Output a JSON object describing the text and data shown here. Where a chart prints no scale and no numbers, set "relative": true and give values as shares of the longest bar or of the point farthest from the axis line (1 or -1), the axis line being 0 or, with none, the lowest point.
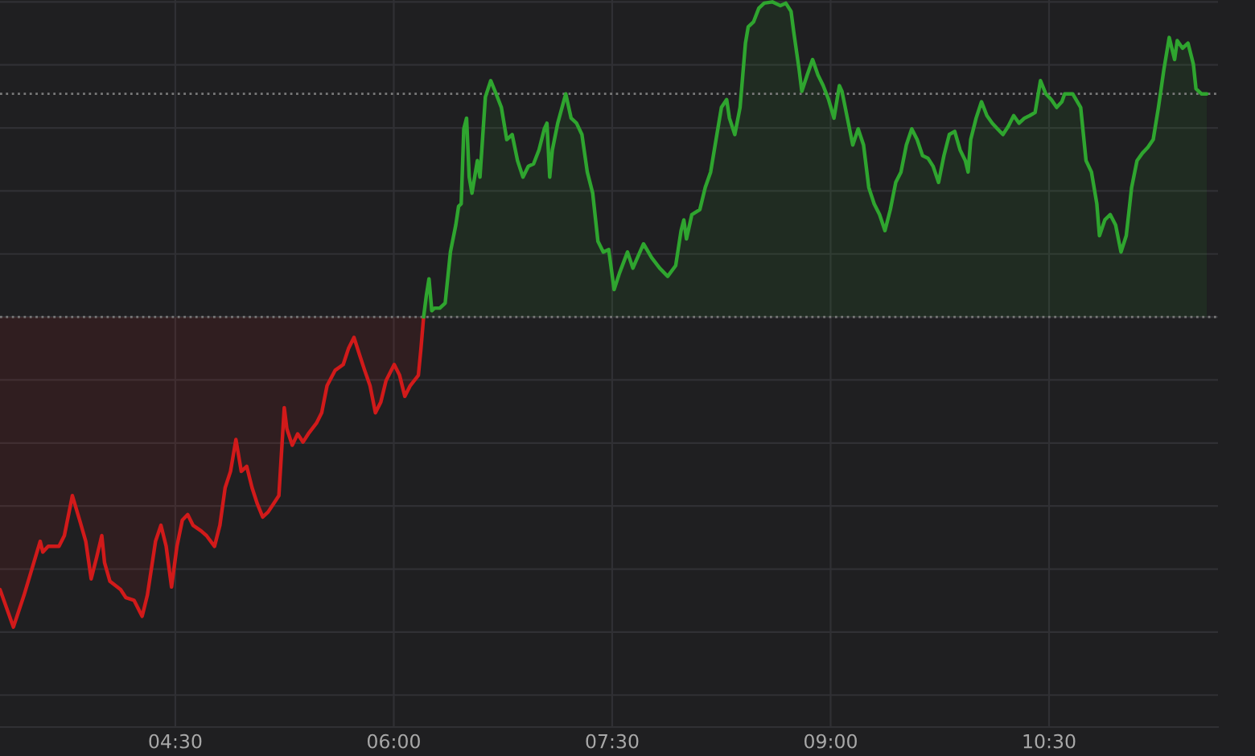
{
  "chart_data": {
    "type": "area",
    "relative": true,
    "grid": true,
    "tick_labels": "x",
    "xlim": [
      3.296,
      11.66
    ],
    "xticks": [
      {
        "value": 4.5,
        "label": "04:30"
      },
      {
        "value": 6.0,
        "label": "06:00"
      },
      {
        "value": 7.5,
        "label": "07:30"
      },
      {
        "value": 9.0,
        "label": "09:00"
      },
      {
        "value": 10.5,
        "label": "10:30"
      }
    ],
    "ref_lines": [
      {
        "axis": "y",
        "value": 0,
        "color": "#7a7a7a",
        "line_style": "dotted"
      },
      {
        "axis": "y",
        "value": 0.708,
        "color": "#7a7a7a",
        "line_style": "dotted"
      }
    ],
    "series": [
      {
        "color": "#d11a1a",
        "x": [
          3.296,
          3.388,
          3.461,
          3.572,
          3.59,
          3.627,
          3.701,
          3.738,
          3.793,
          3.848,
          3.885,
          3.922,
          3.959,
          3.995,
          4.014,
          4.051,
          4.124,
          4.161,
          4.216,
          4.272,
          4.308,
          4.364,
          4.401,
          4.437,
          4.474,
          4.511,
          4.548,
          4.585,
          4.621,
          4.677,
          4.714,
          4.769,
          4.806,
          4.842,
          4.879,
          4.916,
          4.953,
          4.99,
          5.027,
          5.063,
          5.1,
          5.137,
          5.174,
          5.211,
          5.248,
          5.266,
          5.303,
          5.34,
          5.377,
          5.413,
          5.469,
          5.505,
          5.542,
          5.598,
          5.653,
          5.69,
          5.727,
          5.763,
          5.8,
          5.837,
          5.874,
          5.911,
          5.947,
          6.003,
          6.04,
          6.076,
          6.113,
          6.169,
          6.187,
          6.205
        ],
        "values": [
          -0.865,
          -0.984,
          -0.883,
          -0.712,
          -0.746,
          -0.728,
          -0.728,
          -0.694,
          -0.567,
          -0.653,
          -0.712,
          -0.831,
          -0.764,
          -0.694,
          -0.78,
          -0.839,
          -0.865,
          -0.891,
          -0.899,
          -0.95,
          -0.883,
          -0.712,
          -0.661,
          -0.728,
          -0.857,
          -0.728,
          -0.645,
          -0.627,
          -0.661,
          -0.679,
          -0.694,
          -0.728,
          -0.661,
          -0.542,
          -0.49,
          -0.389,
          -0.49,
          -0.474,
          -0.542,
          -0.593,
          -0.635,
          -0.619,
          -0.593,
          -0.567,
          -0.288,
          -0.355,
          -0.407,
          -0.371,
          -0.397,
          -0.371,
          -0.337,
          -0.304,
          -0.218,
          -0.169,
          -0.151,
          -0.099,
          -0.065,
          -0.117,
          -0.169,
          -0.218,
          -0.304,
          -0.27,
          -0.202,
          -0.151,
          -0.185,
          -0.252,
          -0.218,
          -0.185,
          -0.099,
          0.0
        ]
      },
      {
        "color": "#2fa52f",
        "x": [
          6.205,
          6.224,
          6.242,
          6.261,
          6.279,
          6.316,
          6.353,
          6.389,
          6.426,
          6.445,
          6.463,
          6.481,
          6.5,
          6.518,
          6.537,
          6.574,
          6.592,
          6.629,
          6.666,
          6.703,
          6.739,
          6.776,
          6.813,
          6.85,
          6.887,
          6.924,
          6.96,
          6.997,
          7.034,
          7.052,
          7.071,
          7.089,
          7.126,
          7.181,
          7.218,
          7.255,
          7.292,
          7.329,
          7.366,
          7.402,
          7.439,
          7.476,
          7.513,
          7.55,
          7.605,
          7.642,
          7.715,
          7.771,
          7.826,
          7.881,
          7.936,
          7.973,
          7.992,
          8.01,
          8.047,
          8.102,
          8.139,
          8.176,
          8.213,
          8.25,
          8.286,
          8.305,
          8.342,
          8.378,
          8.415,
          8.434,
          8.471,
          8.507,
          8.544,
          8.599,
          8.655,
          8.692,
          8.728,
          8.747,
          8.784,
          8.802,
          8.839,
          8.876,
          8.913,
          8.949,
          8.986,
          9.023,
          9.06,
          9.078,
          9.115,
          9.152,
          9.189,
          9.226,
          9.262,
          9.299,
          9.336,
          9.373,
          9.41,
          9.447,
          9.483,
          9.52,
          9.557,
          9.594,
          9.631,
          9.668,
          9.704,
          9.741,
          9.778,
          9.815,
          9.852,
          9.889,
          9.925,
          9.944,
          9.962,
          9.999,
          10.036,
          10.073,
          10.11,
          10.146,
          10.183,
          10.22,
          10.257,
          10.294,
          10.331,
          10.367,
          10.404,
          10.441,
          10.478,
          10.515,
          10.552,
          10.588,
          10.607,
          10.662,
          10.717,
          10.754,
          10.791,
          10.828,
          10.846,
          10.883,
          10.92,
          10.957,
          10.994,
          11.03,
          11.067,
          11.104,
          11.141,
          11.178,
          11.215,
          11.251,
          11.288,
          11.325,
          11.362,
          11.38,
          11.417,
          11.454,
          11.491,
          11.509,
          11.546,
          11.583
        ],
        "values": [
          0.0,
          0.069,
          0.121,
          0.02,
          0.028,
          0.028,
          0.044,
          0.206,
          0.292,
          0.351,
          0.359,
          0.597,
          0.631,
          0.444,
          0.393,
          0.496,
          0.444,
          0.698,
          0.75,
          0.708,
          0.665,
          0.563,
          0.579,
          0.496,
          0.444,
          0.478,
          0.486,
          0.53,
          0.597,
          0.615,
          0.444,
          0.53,
          0.615,
          0.708,
          0.631,
          0.615,
          0.579,
          0.46,
          0.393,
          0.24,
          0.206,
          0.214,
          0.087,
          0.139,
          0.206,
          0.155,
          0.232,
          0.188,
          0.155,
          0.129,
          0.163,
          0.274,
          0.308,
          0.248,
          0.325,
          0.341,
          0.411,
          0.46,
          0.563,
          0.665,
          0.69,
          0.631,
          0.579,
          0.665,
          0.869,
          0.921,
          0.937,
          0.98,
          0.996,
          1.0,
          0.988,
          0.996,
          0.97,
          0.903,
          0.784,
          0.716,
          0.768,
          0.817,
          0.768,
          0.734,
          0.69,
          0.631,
          0.734,
          0.716,
          0.631,
          0.546,
          0.597,
          0.546,
          0.411,
          0.359,
          0.325,
          0.274,
          0.341,
          0.427,
          0.46,
          0.546,
          0.597,
          0.563,
          0.512,
          0.504,
          0.478,
          0.427,
          0.512,
          0.579,
          0.589,
          0.53,
          0.496,
          0.46,
          0.563,
          0.631,
          0.683,
          0.639,
          0.615,
          0.597,
          0.579,
          0.605,
          0.639,
          0.615,
          0.631,
          0.639,
          0.649,
          0.75,
          0.708,
          0.69,
          0.665,
          0.683,
          0.708,
          0.708,
          0.665,
          0.496,
          0.46,
          0.359,
          0.258,
          0.308,
          0.325,
          0.292,
          0.206,
          0.258,
          0.411,
          0.496,
          0.52,
          0.538,
          0.563,
          0.665,
          0.784,
          0.887,
          0.817,
          0.877,
          0.853,
          0.869,
          0.802,
          0.724,
          0.708,
          0.708
        ]
      }
    ]
  }
}
